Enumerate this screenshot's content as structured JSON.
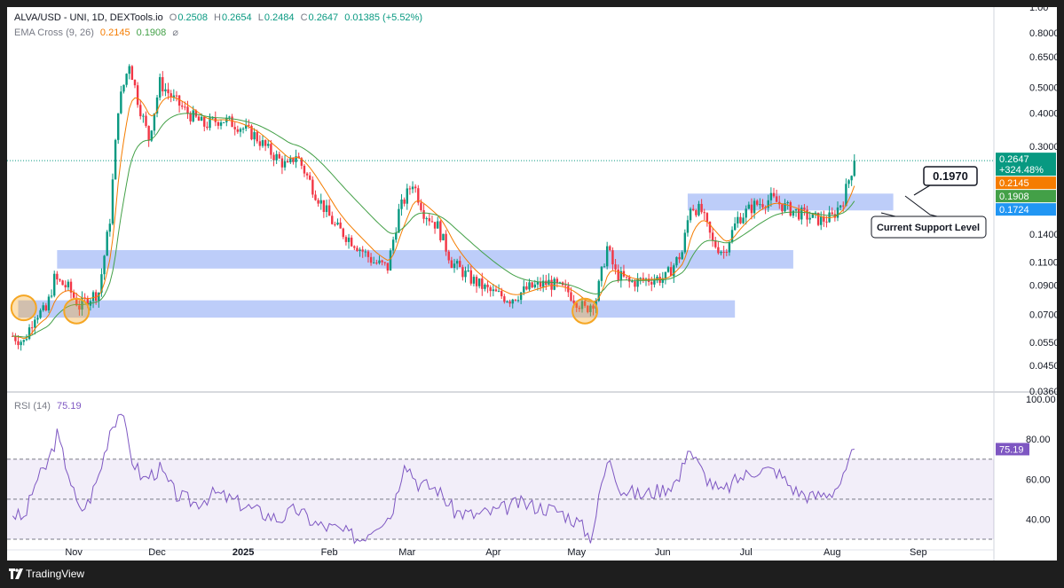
{
  "header": {
    "symbol": "ALVA/USD - UNI, 1D, DEXTools.io",
    "o_label": "O",
    "o_value": "0.2508",
    "h_label": "H",
    "h_value": "0.2654",
    "l_label": "L",
    "l_value": "0.2484",
    "c_label": "C",
    "c_value": "0.2647",
    "change": "0.01385 (+5.52%)",
    "ema_label": "EMA Cross (9, 26)",
    "ema_fast": "0.2145",
    "ema_slow": "0.1908",
    "ema_icon": "hidden-eye-icon",
    "rsi_label": "RSI (14)",
    "rsi_value": "75.19"
  },
  "footer": {
    "brand": "TradingView",
    "logo_icon": "tradingview-logo-icon"
  },
  "colors": {
    "up": "#089981",
    "down": "#f23645",
    "ema_fast": "#f57c00",
    "ema_slow": "#43a047",
    "rsi": "#7e57c2",
    "zone": "#a7bcf7",
    "circle": "#f5a623",
    "signal": "#2196f3"
  },
  "chart_data": [
    {
      "type": "candlestick",
      "title": "ALVA/USD - UNI, 1D, DEXTools.io",
      "y_scale": "log",
      "ylim": [
        0.036,
        1.0
      ],
      "y_ticks": [
        "1.00",
        "0.8000",
        "0.6500",
        "0.5000",
        "0.4000",
        "0.3000",
        "0.1400",
        "0.1100",
        "0.09000",
        "0.07000",
        "0.05500",
        "0.04500",
        "0.03600"
      ],
      "y_tick_values": [
        1.0,
        0.8,
        0.65,
        0.5,
        0.4,
        0.3,
        0.14,
        0.11,
        0.09,
        0.07,
        0.055,
        0.045,
        0.036
      ],
      "x_ticks": [
        "Nov",
        "Dec",
        "2025",
        "Feb",
        "Mar",
        "Apr",
        "May",
        "Jun",
        "Jul",
        "Aug",
        "Sep"
      ],
      "price_path": [
        [
          "2024-10-10",
          0.058
        ],
        [
          "2024-10-14",
          0.055
        ],
        [
          "2024-10-18",
          0.07
        ],
        [
          "2024-10-22",
          0.072
        ],
        [
          "2024-10-25",
          0.095
        ],
        [
          "2024-10-30",
          0.088
        ],
        [
          "2024-11-03",
          0.075
        ],
        [
          "2024-11-06",
          0.08
        ],
        [
          "2024-11-10",
          0.085
        ],
        [
          "2024-11-14",
          0.16
        ],
        [
          "2024-11-17",
          0.42
        ],
        [
          "2024-11-21",
          0.62
        ],
        [
          "2024-11-24",
          0.45
        ],
        [
          "2024-11-28",
          0.32
        ],
        [
          "2024-12-02",
          0.52
        ],
        [
          "2024-12-07",
          0.45
        ],
        [
          "2024-12-12",
          0.4
        ],
        [
          "2024-12-18",
          0.36
        ],
        [
          "2024-12-24",
          0.38
        ],
        [
          "2024-12-30",
          0.36
        ],
        [
          "2025-01-05",
          0.33
        ],
        [
          "2025-01-10",
          0.29
        ],
        [
          "2025-01-17",
          0.25
        ],
        [
          "2025-01-20",
          0.28
        ],
        [
          "2025-01-27",
          0.2
        ],
        [
          "2025-02-03",
          0.15
        ],
        [
          "2025-02-10",
          0.13
        ],
        [
          "2025-02-17",
          0.11
        ],
        [
          "2025-02-22",
          0.105
        ],
        [
          "2025-02-26",
          0.17
        ],
        [
          "2025-03-03",
          0.22
        ],
        [
          "2025-03-07",
          0.17
        ],
        [
          "2025-03-12",
          0.15
        ],
        [
          "2025-03-17",
          0.11
        ],
        [
          "2025-03-24",
          0.095
        ],
        [
          "2025-03-31",
          0.085
        ],
        [
          "2025-04-07",
          0.08
        ],
        [
          "2025-04-14",
          0.088
        ],
        [
          "2025-04-21",
          0.092
        ],
        [
          "2025-04-28",
          0.085
        ],
        [
          "2025-05-04",
          0.073
        ],
        [
          "2025-05-08",
          0.08
        ],
        [
          "2025-05-12",
          0.125
        ],
        [
          "2025-05-15",
          0.1
        ],
        [
          "2025-05-20",
          0.092
        ],
        [
          "2025-05-27",
          0.095
        ],
        [
          "2025-06-02",
          0.096
        ],
        [
          "2025-06-08",
          0.12
        ],
        [
          "2025-06-11",
          0.18
        ],
        [
          "2025-06-15",
          0.17
        ],
        [
          "2025-06-19",
          0.13
        ],
        [
          "2025-06-23",
          0.12
        ],
        [
          "2025-06-28",
          0.16
        ],
        [
          "2025-07-04",
          0.18
        ],
        [
          "2025-07-10",
          0.19
        ],
        [
          "2025-07-16",
          0.175
        ],
        [
          "2025-07-22",
          0.165
        ],
        [
          "2025-07-28",
          0.158
        ],
        [
          "2025-08-01",
          0.162
        ],
        [
          "2025-08-05",
          0.19
        ],
        [
          "2025-08-09",
          0.2647
        ]
      ],
      "series": [
        {
          "name": "EMA Cross (9, 26)",
          "values": "ema9"
        },
        {
          "name": "EMA Cross (9, 26)",
          "values": "ema26"
        }
      ],
      "price_labels": [
        {
          "value": "0.2647",
          "extra": "+324.48%",
          "color": "#089981"
        },
        {
          "value": "0.2145",
          "color": "#f57c00"
        },
        {
          "value": "0.1908",
          "color": "#43a047"
        },
        {
          "value": "0.1724",
          "color": "#2196f3"
        }
      ],
      "zones": [
        {
          "from": "2024-10-26",
          "to": "2025-07-18",
          "low": 0.104,
          "high": 0.122
        },
        {
          "from": "2024-10-12",
          "to": "2025-06-27",
          "low": 0.068,
          "high": 0.079
        },
        {
          "from": "2025-06-10",
          "to": "2025-08-23",
          "low": 0.172,
          "high": 0.199
        }
      ],
      "circles": [
        [
          "2024-10-14",
          0.074
        ],
        [
          "2024-11-02",
          0.072
        ],
        [
          "2025-05-04",
          0.072
        ]
      ],
      "annotations": [
        {
          "text": "0.1970",
          "type": "price-callout"
        },
        {
          "text": "Current Support Level",
          "type": "callout"
        }
      ],
      "current_price_line": 0.2647
    },
    {
      "type": "line",
      "title": "RSI (14)",
      "value_label": "75.19",
      "ylim": [
        30,
        100
      ],
      "y_ticks": [
        "100.00",
        "80.00",
        "60.00",
        "40.00"
      ],
      "y_tick_values": [
        100,
        80,
        60,
        40
      ],
      "bands": [
        30,
        50,
        70
      ],
      "rsi_path": [
        [
          "2024-10-10",
          43
        ],
        [
          "2024-10-14",
          40
        ],
        [
          "2024-10-18",
          58
        ],
        [
          "2024-10-22",
          66
        ],
        [
          "2024-10-26",
          82
        ],
        [
          "2024-10-30",
          64
        ],
        [
          "2024-11-03",
          44
        ],
        [
          "2024-11-06",
          48
        ],
        [
          "2024-11-10",
          62
        ],
        [
          "2024-11-14",
          85
        ],
        [
          "2024-11-18",
          95
        ],
        [
          "2024-11-22",
          70
        ],
        [
          "2024-11-26",
          60
        ],
        [
          "2024-12-02",
          65
        ],
        [
          "2024-12-08",
          52
        ],
        [
          "2024-12-15",
          48
        ],
        [
          "2024-12-22",
          53
        ],
        [
          "2024-12-29",
          49
        ],
        [
          "2025-01-06",
          44
        ],
        [
          "2025-01-14",
          40
        ],
        [
          "2025-01-20",
          45
        ],
        [
          "2025-01-28",
          37
        ],
        [
          "2025-02-04",
          35
        ],
        [
          "2025-02-12",
          30
        ],
        [
          "2025-02-18",
          38
        ],
        [
          "2025-02-23",
          42
        ],
        [
          "2025-02-28",
          70
        ],
        [
          "2025-03-05",
          58
        ],
        [
          "2025-03-12",
          55
        ],
        [
          "2025-03-18",
          44
        ],
        [
          "2025-03-25",
          42
        ],
        [
          "2025-04-02",
          44
        ],
        [
          "2025-04-10",
          48
        ],
        [
          "2025-04-18",
          46
        ],
        [
          "2025-04-25",
          44
        ],
        [
          "2025-05-02",
          38
        ],
        [
          "2025-05-06",
          31
        ],
        [
          "2025-05-10",
          58
        ],
        [
          "2025-05-13",
          71
        ],
        [
          "2025-05-17",
          55
        ],
        [
          "2025-05-24",
          52
        ],
        [
          "2025-06-01",
          55
        ],
        [
          "2025-06-07",
          60
        ],
        [
          "2025-06-10",
          77
        ],
        [
          "2025-06-16",
          62
        ],
        [
          "2025-06-22",
          53
        ],
        [
          "2025-06-28",
          60
        ],
        [
          "2025-07-05",
          65
        ],
        [
          "2025-07-12",
          64
        ],
        [
          "2025-07-19",
          54
        ],
        [
          "2025-07-25",
          51
        ],
        [
          "2025-08-01",
          54
        ],
        [
          "2025-08-05",
          60
        ],
        [
          "2025-08-09",
          75
        ]
      ]
    }
  ]
}
